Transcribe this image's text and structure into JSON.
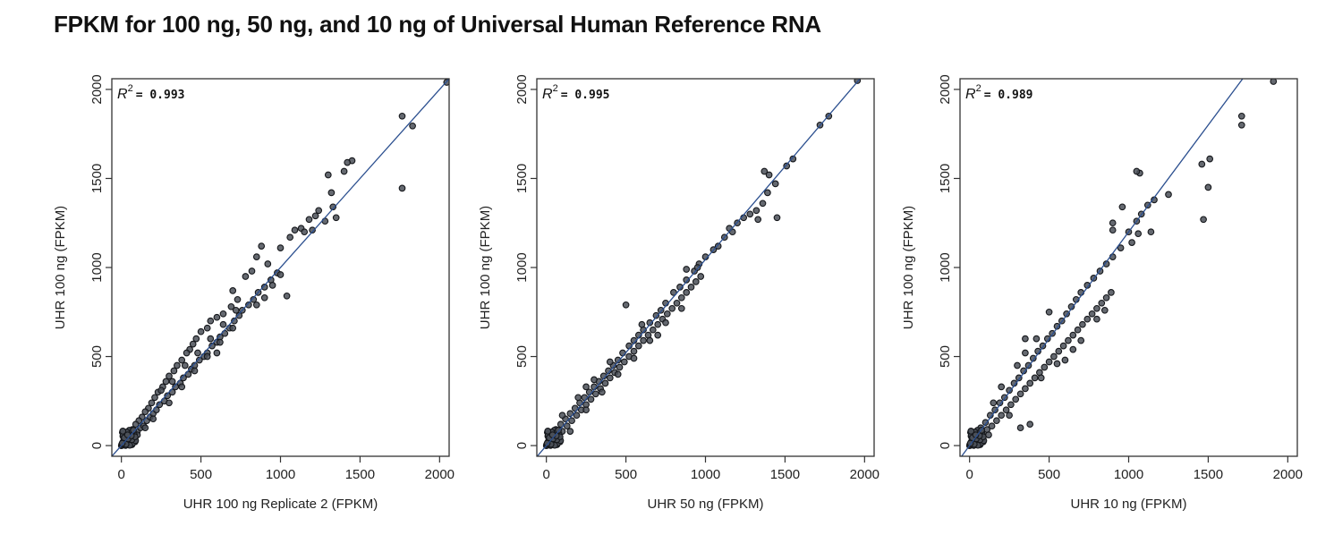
{
  "title": "FPKM for 100 ng, 50 ng, and 10 ng of Universal Human Reference RNA",
  "colors": {
    "line": "#2b4f8f",
    "point_fill": "#4a4f57",
    "point_stroke": "#15171b",
    "frame": "#333333"
  },
  "chart_data": [
    {
      "type": "scatter",
      "xlabel": "UHR 100 ng Replicate 2 (FPKM)",
      "ylabel": "UHR 100 ng (FPKM)",
      "r2_label": "R",
      "r2_sup": "2",
      "r2_value": "= 0.993",
      "xlim": [
        -60,
        2060
      ],
      "ylim": [
        -60,
        2060
      ],
      "xticks": [
        0,
        500,
        1000,
        1500,
        2000
      ],
      "yticks": [
        0,
        500,
        1000,
        1500,
        2000
      ],
      "line": {
        "slope": 1.0,
        "intercept": 0
      },
      "points": [
        [
          2045,
          2040
        ],
        [
          1765,
          1850
        ],
        [
          1830,
          1795
        ],
        [
          1765,
          1445
        ],
        [
          1450,
          1600
        ],
        [
          1420,
          1590
        ],
        [
          1400,
          1540
        ],
        [
          1300,
          1520
        ],
        [
          1320,
          1420
        ],
        [
          1330,
          1340
        ],
        [
          1240,
          1320
        ],
        [
          1220,
          1290
        ],
        [
          1350,
          1280
        ],
        [
          1180,
          1270
        ],
        [
          1280,
          1260
        ],
        [
          1200,
          1210
        ],
        [
          1130,
          1220
        ],
        [
          1090,
          1210
        ],
        [
          1150,
          1200
        ],
        [
          1060,
          1170
        ],
        [
          1000,
          1110
        ],
        [
          880,
          1120
        ],
        [
          850,
          1060
        ],
        [
          920,
          1020
        ],
        [
          820,
          980
        ],
        [
          780,
          950
        ],
        [
          1040,
          840
        ],
        [
          700,
          870
        ],
        [
          730,
          820
        ],
        [
          690,
          780
        ],
        [
          640,
          740
        ],
        [
          600,
          720
        ],
        [
          560,
          700
        ],
        [
          540,
          660
        ],
        [
          500,
          640
        ],
        [
          470,
          600
        ],
        [
          450,
          570
        ],
        [
          430,
          540
        ],
        [
          410,
          520
        ],
        [
          380,
          480
        ],
        [
          350,
          450
        ],
        [
          330,
          420
        ],
        [
          300,
          390
        ],
        [
          280,
          360
        ],
        [
          260,
          330
        ],
        [
          230,
          300
        ],
        [
          210,
          270
        ],
        [
          190,
          240
        ],
        [
          170,
          210
        ],
        [
          150,
          190
        ],
        [
          130,
          160
        ],
        [
          110,
          140
        ],
        [
          90,
          120
        ],
        [
          70,
          90
        ],
        [
          50,
          70
        ],
        [
          30,
          50
        ],
        [
          20,
          30
        ],
        [
          10,
          20
        ],
        [
          60,
          40
        ],
        [
          80,
          60
        ],
        [
          40,
          20
        ],
        [
          100,
          80
        ],
        [
          120,
          100
        ],
        [
          140,
          110
        ],
        [
          160,
          140
        ],
        [
          180,
          160
        ],
        [
          200,
          180
        ],
        [
          220,
          200
        ],
        [
          240,
          230
        ],
        [
          270,
          250
        ],
        [
          290,
          280
        ],
        [
          320,
          300
        ],
        [
          340,
          330
        ],
        [
          370,
          350
        ],
        [
          390,
          380
        ],
        [
          420,
          400
        ],
        [
          440,
          430
        ],
        [
          460,
          450
        ],
        [
          490,
          480
        ],
        [
          520,
          500
        ],
        [
          540,
          520
        ],
        [
          570,
          560
        ],
        [
          600,
          580
        ],
        [
          620,
          610
        ],
        [
          650,
          630
        ],
        [
          680,
          660
        ],
        [
          710,
          700
        ],
        [
          740,
          730
        ],
        [
          760,
          760
        ],
        [
          800,
          790
        ],
        [
          830,
          820
        ],
        [
          860,
          860
        ],
        [
          900,
          890
        ],
        [
          940,
          930
        ],
        [
          980,
          970
        ],
        [
          250,
          310
        ],
        [
          320,
          360
        ],
        [
          400,
          450
        ],
        [
          480,
          520
        ],
        [
          560,
          600
        ],
        [
          640,
          680
        ],
        [
          720,
          760
        ],
        [
          380,
          330
        ],
        [
          460,
          420
        ],
        [
          540,
          500
        ],
        [
          620,
          580
        ],
        [
          700,
          660
        ],
        [
          600,
          520
        ],
        [
          300,
          240
        ],
        [
          200,
          150
        ],
        [
          150,
          100
        ],
        [
          100,
          60
        ],
        [
          70,
          20
        ],
        [
          850,
          790
        ],
        [
          900,
          830
        ],
        [
          1000,
          960
        ],
        [
          950,
          900
        ]
      ]
    },
    {
      "type": "scatter",
      "xlabel": "UHR 50 ng (FPKM)",
      "ylabel": "UHR 100 ng (FPKM)",
      "r2_label": "R",
      "r2_sup": "2",
      "r2_value": "= 0.995",
      "xlim": [
        -60,
        2060
      ],
      "ylim": [
        -60,
        2060
      ],
      "xticks": [
        0,
        500,
        1000,
        1500,
        2000
      ],
      "yticks": [
        0,
        500,
        1000,
        1500,
        2000
      ],
      "line": {
        "slope": 1.045,
        "intercept": 0
      },
      "points": [
        [
          1955,
          2050
        ],
        [
          1775,
          1850
        ],
        [
          1720,
          1800
        ],
        [
          1550,
          1610
        ],
        [
          1510,
          1570
        ],
        [
          1370,
          1540
        ],
        [
          1400,
          1520
        ],
        [
          1440,
          1470
        ],
        [
          1390,
          1420
        ],
        [
          1450,
          1280
        ],
        [
          1360,
          1360
        ],
        [
          1320,
          1320
        ],
        [
          1280,
          1300
        ],
        [
          1240,
          1280
        ],
        [
          1330,
          1270
        ],
        [
          1200,
          1250
        ],
        [
          1150,
          1220
        ],
        [
          1170,
          1200
        ],
        [
          1120,
          1170
        ],
        [
          1080,
          1120
        ],
        [
          1000,
          1060
        ],
        [
          960,
          1020
        ],
        [
          930,
          980
        ],
        [
          880,
          930
        ],
        [
          840,
          890
        ],
        [
          800,
          860
        ],
        [
          750,
          800
        ],
        [
          720,
          760
        ],
        [
          690,
          730
        ],
        [
          650,
          690
        ],
        [
          610,
          650
        ],
        [
          580,
          620
        ],
        [
          550,
          590
        ],
        [
          520,
          560
        ],
        [
          480,
          520
        ],
        [
          450,
          480
        ],
        [
          420,
          450
        ],
        [
          390,
          420
        ],
        [
          360,
          390
        ],
        [
          330,
          360
        ],
        [
          300,
          330
        ],
        [
          270,
          300
        ],
        [
          240,
          270
        ],
        [
          210,
          240
        ],
        [
          180,
          210
        ],
        [
          150,
          180
        ],
        [
          120,
          150
        ],
        [
          90,
          120
        ],
        [
          60,
          90
        ],
        [
          40,
          60
        ],
        [
          20,
          40
        ],
        [
          10,
          20
        ],
        [
          30,
          10
        ],
        [
          50,
          30
        ],
        [
          70,
          50
        ],
        [
          100,
          80
        ],
        [
          130,
          110
        ],
        [
          160,
          140
        ],
        [
          190,
          170
        ],
        [
          220,
          200
        ],
        [
          250,
          230
        ],
        [
          280,
          260
        ],
        [
          310,
          290
        ],
        [
          340,
          320
        ],
        [
          370,
          350
        ],
        [
          400,
          380
        ],
        [
          430,
          410
        ],
        [
          460,
          440
        ],
        [
          490,
          470
        ],
        [
          520,
          500
        ],
        [
          550,
          530
        ],
        [
          580,
          560
        ],
        [
          610,
          590
        ],
        [
          640,
          620
        ],
        [
          670,
          650
        ],
        [
          700,
          680
        ],
        [
          730,
          710
        ],
        [
          760,
          740
        ],
        [
          790,
          770
        ],
        [
          820,
          800
        ],
        [
          850,
          830
        ],
        [
          880,
          860
        ],
        [
          910,
          890
        ],
        [
          940,
          920
        ],
        [
          970,
          950
        ],
        [
          500,
          790
        ],
        [
          250,
          330
        ],
        [
          200,
          270
        ],
        [
          100,
          170
        ],
        [
          150,
          80
        ],
        [
          250,
          200
        ],
        [
          350,
          300
        ],
        [
          750,
          690
        ],
        [
          850,
          770
        ],
        [
          700,
          620
        ],
        [
          450,
          400
        ],
        [
          550,
          490
        ],
        [
          650,
          590
        ],
        [
          950,
          1000
        ],
        [
          1050,
          1100
        ],
        [
          880,
          990
        ],
        [
          300,
          370
        ],
        [
          400,
          470
        ],
        [
          600,
          680
        ]
      ]
    },
    {
      "type": "scatter",
      "xlabel": "UHR 10 ng (FPKM)",
      "ylabel": "UHR 100 ng (FPKM)",
      "r2_label": "R",
      "r2_sup": "2",
      "r2_value": "= 0.989",
      "xlim": [
        -60,
        2060
      ],
      "ylim": [
        -60,
        2060
      ],
      "xticks": [
        0,
        500,
        1000,
        1500,
        2000
      ],
      "yticks": [
        0,
        500,
        1000,
        1500,
        2000
      ],
      "line": {
        "slope": 1.2,
        "intercept": 0
      },
      "points": [
        [
          1910,
          2045
        ],
        [
          1710,
          1850
        ],
        [
          1710,
          1800
        ],
        [
          1510,
          1610
        ],
        [
          1460,
          1580
        ],
        [
          1500,
          1450
        ],
        [
          1470,
          1270
        ],
        [
          1250,
          1410
        ],
        [
          1070,
          1530
        ],
        [
          1050,
          1540
        ],
        [
          1160,
          1380
        ],
        [
          1120,
          1350
        ],
        [
          1080,
          1300
        ],
        [
          1050,
          1260
        ],
        [
          960,
          1340
        ],
        [
          900,
          1210
        ],
        [
          1000,
          1200
        ],
        [
          1060,
          1190
        ],
        [
          1020,
          1140
        ],
        [
          950,
          1110
        ],
        [
          900,
          1060
        ],
        [
          860,
          1020
        ],
        [
          820,
          980
        ],
        [
          780,
          940
        ],
        [
          740,
          900
        ],
        [
          700,
          860
        ],
        [
          670,
          820
        ],
        [
          640,
          780
        ],
        [
          610,
          740
        ],
        [
          580,
          700
        ],
        [
          550,
          670
        ],
        [
          520,
          630
        ],
        [
          490,
          600
        ],
        [
          460,
          560
        ],
        [
          430,
          530
        ],
        [
          400,
          490
        ],
        [
          370,
          450
        ],
        [
          340,
          420
        ],
        [
          310,
          380
        ],
        [
          280,
          350
        ],
        [
          250,
          310
        ],
        [
          220,
          270
        ],
        [
          190,
          240
        ],
        [
          160,
          200
        ],
        [
          130,
          170
        ],
        [
          100,
          130
        ],
        [
          70,
          100
        ],
        [
          50,
          70
        ],
        [
          30,
          50
        ],
        [
          20,
          30
        ],
        [
          10,
          20
        ],
        [
          40,
          20
        ],
        [
          60,
          40
        ],
        [
          80,
          60
        ],
        [
          110,
          90
        ],
        [
          140,
          110
        ],
        [
          170,
          140
        ],
        [
          200,
          170
        ],
        [
          230,
          200
        ],
        [
          260,
          230
        ],
        [
          290,
          260
        ],
        [
          320,
          290
        ],
        [
          350,
          320
        ],
        [
          380,
          350
        ],
        [
          410,
          380
        ],
        [
          440,
          410
        ],
        [
          470,
          440
        ],
        [
          500,
          470
        ],
        [
          530,
          500
        ],
        [
          560,
          530
        ],
        [
          590,
          560
        ],
        [
          620,
          590
        ],
        [
          650,
          620
        ],
        [
          680,
          650
        ],
        [
          710,
          680
        ],
        [
          740,
          710
        ],
        [
          770,
          740
        ],
        [
          800,
          770
        ],
        [
          830,
          800
        ],
        [
          860,
          830
        ],
        [
          890,
          860
        ],
        [
          350,
          600
        ],
        [
          380,
          120
        ],
        [
          320,
          100
        ],
        [
          250,
          170
        ],
        [
          600,
          480
        ],
        [
          650,
          540
        ],
        [
          700,
          590
        ],
        [
          500,
          750
        ],
        [
          900,
          1250
        ],
        [
          1140,
          1200
        ],
        [
          350,
          520
        ],
        [
          420,
          600
        ],
        [
          200,
          330
        ],
        [
          300,
          450
        ],
        [
          450,
          380
        ],
        [
          550,
          460
        ],
        [
          150,
          240
        ],
        [
          120,
          60
        ],
        [
          800,
          710
        ],
        [
          850,
          760
        ]
      ]
    }
  ]
}
